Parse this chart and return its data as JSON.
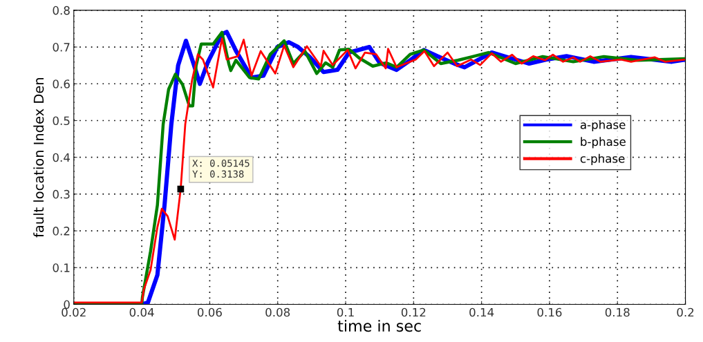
{
  "chart_data": {
    "type": "line",
    "xlabel": "time in sec",
    "ylabel": "fault location Index Den",
    "xlim": [
      0.02,
      0.2
    ],
    "ylim": [
      0,
      0.8
    ],
    "xticks": [
      0.02,
      0.04,
      0.06,
      0.08,
      0.1,
      0.12,
      0.14,
      0.16,
      0.18,
      0.2
    ],
    "yticks": [
      0,
      0.1,
      0.2,
      0.3,
      0.4,
      0.5,
      0.6,
      0.7,
      0.8
    ],
    "grid": true,
    "legend": "right",
    "line_style": "solid",
    "annotations": [
      {
        "text": "X: 0.05145\nY: 0.3138",
        "x": 0.05145,
        "y": 0.3138
      }
    ],
    "series": [
      {
        "name": "a-phase",
        "color": "#0000ff",
        "x": [
          0.02,
          0.04,
          0.0418,
          0.0446,
          0.0467,
          0.0487,
          0.0507,
          0.053,
          0.0554,
          0.0571,
          0.0595,
          0.0636,
          0.065,
          0.0677,
          0.0723,
          0.0758,
          0.0799,
          0.0833,
          0.086,
          0.0894,
          0.0935,
          0.0976,
          0.101,
          0.107,
          0.11,
          0.115,
          0.119,
          0.123,
          0.127,
          0.132,
          0.135,
          0.14,
          0.143,
          0.147,
          0.154,
          0.159,
          0.165,
          0.173,
          0.184,
          0.196,
          0.2
        ],
        "values": [
          0.0,
          0.0,
          0.005,
          0.08,
          0.27,
          0.49,
          0.65,
          0.717,
          0.65,
          0.6,
          0.66,
          0.735,
          0.741,
          0.69,
          0.617,
          0.622,
          0.7,
          0.713,
          0.7,
          0.673,
          0.632,
          0.638,
          0.685,
          0.7,
          0.657,
          0.638,
          0.664,
          0.692,
          0.675,
          0.655,
          0.645,
          0.67,
          0.685,
          0.674,
          0.655,
          0.666,
          0.675,
          0.66,
          0.673,
          0.66,
          0.666
        ]
      },
      {
        "name": "b-phase",
        "color": "#008000",
        "x": [
          0.02,
          0.04,
          0.0402,
          0.0426,
          0.0446,
          0.0463,
          0.0479,
          0.0499,
          0.052,
          0.054,
          0.055,
          0.056,
          0.0575,
          0.061,
          0.0636,
          0.0656,
          0.0662,
          0.0677,
          0.0717,
          0.0744,
          0.0778,
          0.0819,
          0.0846,
          0.088,
          0.0915,
          0.0941,
          0.0962,
          0.0982,
          0.101,
          0.104,
          0.108,
          0.112,
          0.115,
          0.119,
          0.123,
          0.128,
          0.133,
          0.137,
          0.142,
          0.15,
          0.158,
          0.167,
          0.176,
          0.186,
          0.2
        ],
        "values": [
          0.0,
          0.0,
          0.02,
          0.145,
          0.27,
          0.49,
          0.585,
          0.626,
          0.598,
          0.54,
          0.54,
          0.65,
          0.708,
          0.708,
          0.74,
          0.655,
          0.636,
          0.664,
          0.617,
          0.613,
          0.68,
          0.717,
          0.655,
          0.689,
          0.628,
          0.657,
          0.645,
          0.692,
          0.694,
          0.67,
          0.648,
          0.657,
          0.645,
          0.68,
          0.692,
          0.655,
          0.664,
          0.673,
          0.685,
          0.655,
          0.674,
          0.66,
          0.674,
          0.664,
          0.668
        ]
      },
      {
        "name": "c-phase",
        "color": "#ff0000",
        "x": [
          0.02,
          0.04,
          0.0406,
          0.0426,
          0.0446,
          0.0459,
          0.0476,
          0.0497,
          0.05145,
          0.0528,
          0.0548,
          0.0565,
          0.058,
          0.061,
          0.0636,
          0.065,
          0.0683,
          0.07,
          0.0723,
          0.075,
          0.0793,
          0.0819,
          0.0846,
          0.0886,
          0.0927,
          0.0935,
          0.0962,
          0.1006,
          0.1029,
          0.1057,
          0.109,
          0.1118,
          0.1125,
          0.115,
          0.1206,
          0.1232,
          0.126,
          0.13,
          0.1328,
          0.1369,
          0.1396,
          0.143,
          0.1457,
          0.149,
          0.1518,
          0.1552,
          0.1587,
          0.161,
          0.164,
          0.167,
          0.169,
          0.172,
          0.175,
          0.181,
          0.184,
          0.191,
          0.194,
          0.2
        ],
        "values": [
          0.005,
          0.005,
          0.04,
          0.094,
          0.21,
          0.26,
          0.24,
          0.176,
          0.3138,
          0.49,
          0.61,
          0.68,
          0.666,
          0.59,
          0.723,
          0.666,
          0.675,
          0.72,
          0.622,
          0.689,
          0.628,
          0.704,
          0.645,
          0.702,
          0.648,
          0.69,
          0.651,
          0.692,
          0.642,
          0.685,
          0.68,
          0.642,
          0.695,
          0.645,
          0.666,
          0.689,
          0.648,
          0.685,
          0.648,
          0.666,
          0.651,
          0.683,
          0.66,
          0.679,
          0.655,
          0.675,
          0.664,
          0.679,
          0.66,
          0.672,
          0.66,
          0.675,
          0.66,
          0.666,
          0.66,
          0.672,
          0.66,
          0.666
        ]
      }
    ]
  }
}
